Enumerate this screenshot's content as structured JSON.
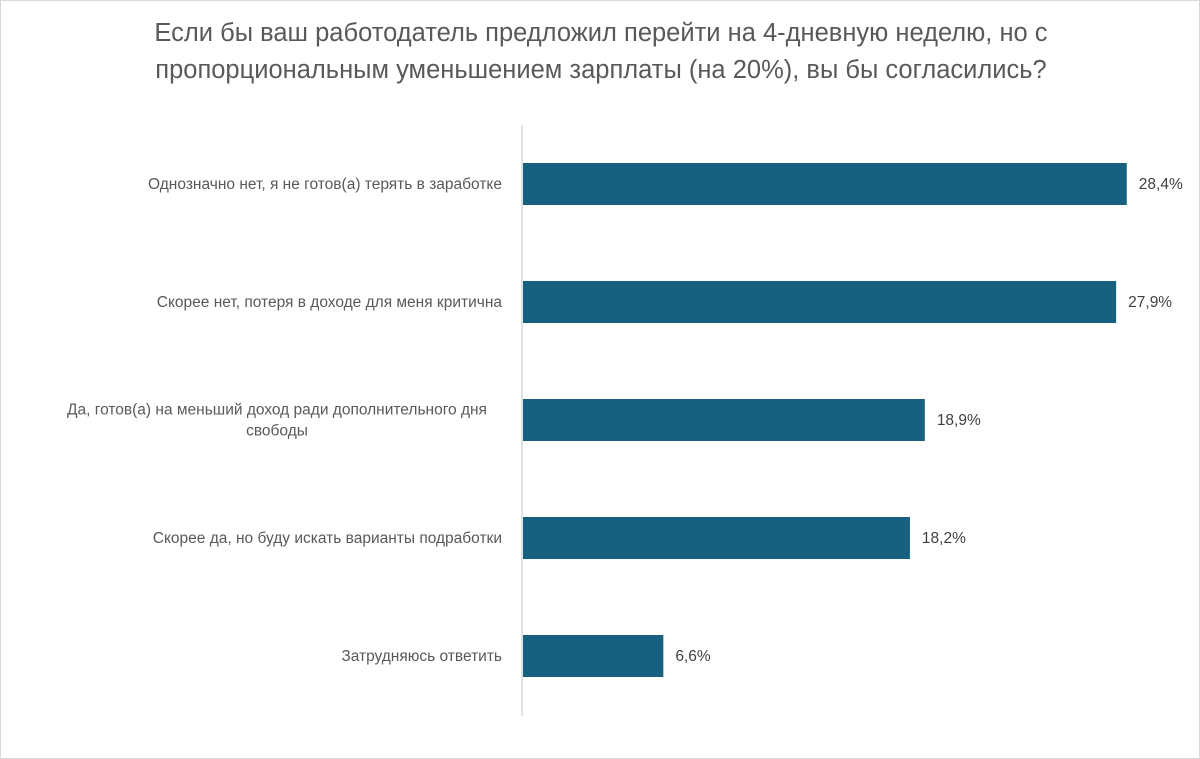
{
  "chart_data": {
    "type": "bar",
    "orientation": "horizontal",
    "title": "Если бы ваш работодатель предложил перейти на 4-дневную неделю, но с пропорциональным уменьшением зарплаты (на 20%), вы бы согласились?",
    "categories": [
      [
        "Однозначно нет, я не готов(а) терять в заработке"
      ],
      [
        "Скорее нет, потеря в доходе для меня критична"
      ],
      [
        "Да, готов(а) на меньший доход ради дополнительного дня",
        "свободы"
      ],
      [
        "Скорее да, но буду искать варианты подработки"
      ],
      [
        "Затрудняюсь ответить"
      ]
    ],
    "values": [
      28.4,
      27.9,
      18.9,
      18.2,
      6.6
    ],
    "value_labels": [
      "28,4%",
      "27,9%",
      "18,9%",
      "18,2%",
      "6,6%"
    ],
    "unit": "%",
    "xlim": [
      0,
      30
    ],
    "grid": false,
    "legend": "none",
    "bar_color": "#17607f",
    "axis_color": "#d9d9d9"
  }
}
